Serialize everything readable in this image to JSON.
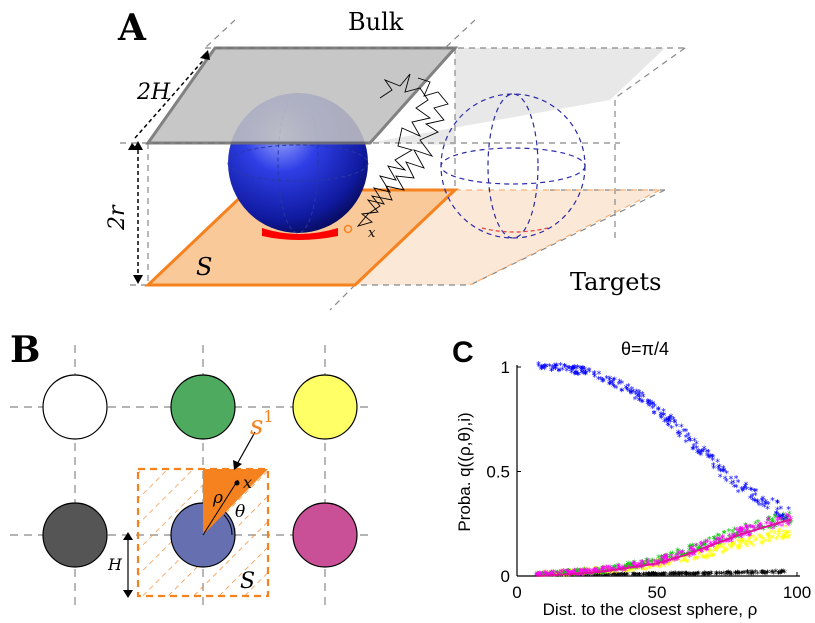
{
  "panel_a": {
    "letter": "A",
    "bulk_label": "Bulk",
    "height_label": "2H",
    "radius_label": "2r",
    "surface_label": "S",
    "point_label": "x",
    "targets_label": "Targets"
  },
  "panel_b": {
    "letter": "B",
    "sector_label": "s",
    "sector_superscript": "1",
    "rho_label": "ρ",
    "theta_label": "θ",
    "point_label": "x",
    "half_side_label": "H",
    "surface_label": "S",
    "sphere_colors": {
      "top_left": "#ffffff",
      "top_middle": "#4daa5f",
      "top_right": "#ffff66",
      "bottom_left": "#555555",
      "bottom_middle": "#6670b0",
      "bottom_right": "#c94f96"
    },
    "accent_color": "#f5821f"
  },
  "panel_c": {
    "letter": "C",
    "chart_data": {
      "type": "scatter",
      "title": "θ=π/4",
      "xlabel": "Dist. to the closest sphere, ρ",
      "ylabel": "Proba. q((ρ,θ),i)",
      "xlim": [
        0,
        100
      ],
      "ylim": [
        0,
        1
      ],
      "xticks": [
        "0",
        "50",
        "100"
      ],
      "yticks": [
        "0",
        "0.5",
        "1"
      ],
      "grid": false,
      "series": [
        {
          "color": "#0000ff",
          "x": [
            7,
            15,
            25,
            35,
            45,
            55,
            65,
            75,
            85,
            90,
            95,
            98
          ],
          "y": [
            1.0,
            0.99,
            0.97,
            0.92,
            0.84,
            0.73,
            0.6,
            0.47,
            0.37,
            0.33,
            0.3,
            0.29
          ]
        },
        {
          "color": "#ff00ff",
          "x": [
            7,
            20,
            30,
            40,
            50,
            60,
            70,
            80,
            90,
            95,
            98
          ],
          "y": [
            0.0,
            0.01,
            0.02,
            0.04,
            0.06,
            0.1,
            0.15,
            0.2,
            0.24,
            0.26,
            0.27
          ]
        },
        {
          "color": "#00cc00",
          "x": [
            7,
            20,
            30,
            40,
            50,
            60,
            70,
            80,
            90,
            95,
            98
          ],
          "y": [
            0.0,
            0.01,
            0.02,
            0.04,
            0.07,
            0.11,
            0.16,
            0.21,
            0.25,
            0.27,
            0.27
          ]
        },
        {
          "color": "#ffff00",
          "x": [
            7,
            20,
            30,
            40,
            50,
            60,
            70,
            80,
            90,
            95,
            98
          ],
          "y": [
            0.0,
            0.01,
            0.02,
            0.03,
            0.05,
            0.08,
            0.11,
            0.15,
            0.18,
            0.2,
            0.21
          ]
        },
        {
          "color": "#000000",
          "x": [
            7,
            20,
            30,
            40,
            50,
            60,
            70,
            80,
            90,
            95,
            98
          ],
          "y": [
            0.0,
            0.0,
            0.0,
            0.0,
            0.002,
            0.004,
            0.006,
            0.008,
            0.01,
            0.012,
            0.014
          ]
        }
      ],
      "fit_line_color": "#e0119e"
    }
  }
}
